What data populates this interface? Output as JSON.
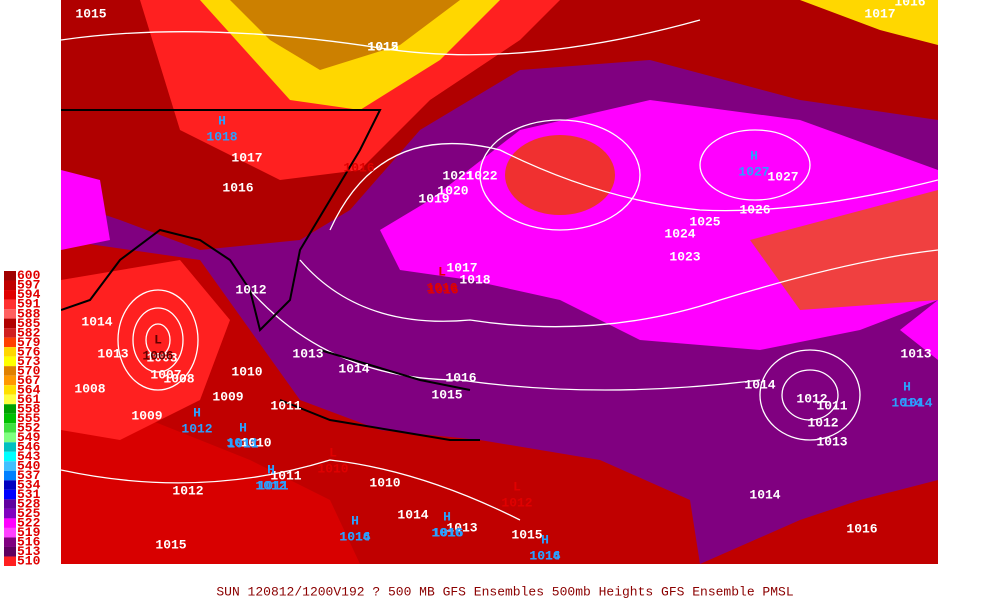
{
  "legend": {
    "labels": [
      "600",
      "597",
      "594",
      "591",
      "588",
      "585",
      "582",
      "579",
      "576",
      "573",
      "570",
      "567",
      "564",
      "561",
      "558",
      "555",
      "552",
      "549",
      "546",
      "543",
      "540",
      "537",
      "534",
      "531",
      "528",
      "525",
      "522",
      "519",
      "516",
      "513",
      "510"
    ]
  },
  "pressure_labels": [
    "1015",
    "1015",
    "1017",
    "1016",
    "1017",
    "1016",
    "1016",
    "1021",
    "1022",
    "1020",
    "1019",
    "1027",
    "1026",
    "1025",
    "1024",
    "1023",
    "1017",
    "1018",
    "1016",
    "1012",
    "1014",
    "1013",
    "1008",
    "1007",
    "1008",
    "1008",
    "1010",
    "1009",
    "1009",
    "1011",
    "1013",
    "1014",
    "1016",
    "1015",
    "1014",
    "1013",
    "1014",
    "1012",
    "1011",
    "1012",
    "1013",
    "1012",
    "1010",
    "1011",
    "1011",
    "1012",
    "1010",
    "1014",
    "1013",
    "1015",
    "1016",
    "1014",
    "1014",
    "1016",
    "1015",
    "1016",
    "1012"
  ],
  "centers": [
    {
      "symbol": "H",
      "value": "1018"
    },
    {
      "symbol": "H",
      "value": "1027"
    },
    {
      "symbol": "H",
      "value": "1012"
    },
    {
      "symbol": "H",
      "value": "1011"
    },
    {
      "symbol": "H",
      "value": "1012"
    },
    {
      "symbol": "H",
      "value": "1016"
    },
    {
      "symbol": "H",
      "value": "1016"
    },
    {
      "symbol": "H",
      "value": "1014"
    },
    {
      "symbol": "H",
      "value": "1014"
    },
    {
      "symbol": "L",
      "value": "1016"
    },
    {
      "symbol": "L",
      "value": "1006"
    },
    {
      "symbol": "L",
      "value": "1010"
    },
    {
      "symbol": "L",
      "value": "1012"
    }
  ],
  "caption": "SUN 120812/1200V192  ? 500 MB GFS Ensembles 500mb Heights GFS Ensemble PMSL"
}
